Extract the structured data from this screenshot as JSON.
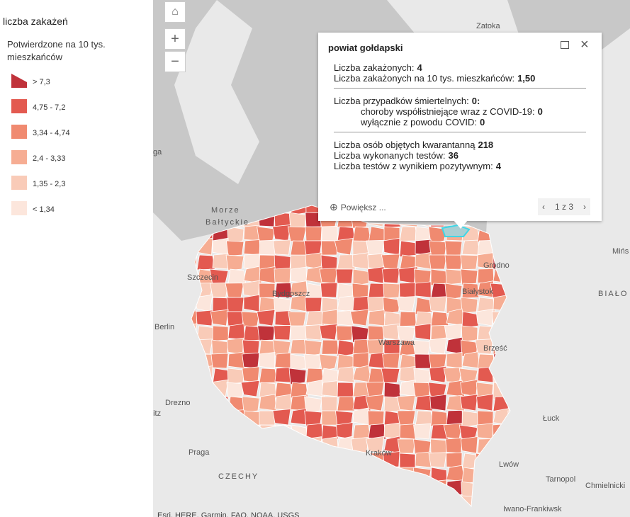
{
  "legend": {
    "title": "liczba zakażeń",
    "subtitle": "Potwierdzone na 10 tys. mieszkańców",
    "items": [
      {
        "label": "> 7,3",
        "color": "#c0323a"
      },
      {
        "label": "4,75 - 7,2",
        "color": "#e35a50"
      },
      {
        "label": "3,34 - 4,74",
        "color": "#f08a70"
      },
      {
        "label": "2,4 - 3,33",
        "color": "#f6ad93"
      },
      {
        "label": "1,35 - 2,3",
        "color": "#f9cbb8"
      },
      {
        "label": "< 1,34",
        "color": "#fce6dc"
      }
    ]
  },
  "popup": {
    "title": "powiat gołdapski",
    "groups": [
      {
        "lines": [
          {
            "label": "Liczba zakażonych:",
            "value": "4"
          },
          {
            "label": "Liczba zakażonych na 10 tys. mieszkańców:",
            "value": "1,50"
          }
        ]
      },
      {
        "lines": [
          {
            "label": "Liczba przypadków śmiertelnych:",
            "value": "0:"
          }
        ],
        "sublines": [
          {
            "label": "choroby współistniejące wraz z COVID-19:",
            "value": "0"
          },
          {
            "label": "wyłącznie z powodu COVID:",
            "value": "0"
          }
        ]
      },
      {
        "lines": [
          {
            "label": "Liczba osób objętych kwarantanną",
            "value": "218"
          },
          {
            "label": "Liczba wykonanych testów:",
            "value": "36"
          },
          {
            "label": "Liczba testów z wynikiem pozytywnym:",
            "value": "4"
          }
        ]
      }
    ],
    "zoom": "Powiększ ...",
    "pager": "1 z 3"
  },
  "map_labels": [
    "Zatoka",
    "Morze",
    "Bałtyckie",
    "Szczecin",
    "Bydgoszcz",
    "Grodno",
    "Białystok",
    "Mińs",
    "BIAŁO",
    "Berlin",
    "Warszawa",
    "Brześć",
    "Drezno",
    "nitz",
    "Praga",
    "CZECHY",
    "Kraków",
    "Łuck",
    "Lwów",
    "Tarnopol",
    "Chmielnicki",
    "Iwano-Frankiwsk",
    "ga"
  ],
  "attribution": "Esri, HERE, Garmin, FAO, NOAA, USGS"
}
